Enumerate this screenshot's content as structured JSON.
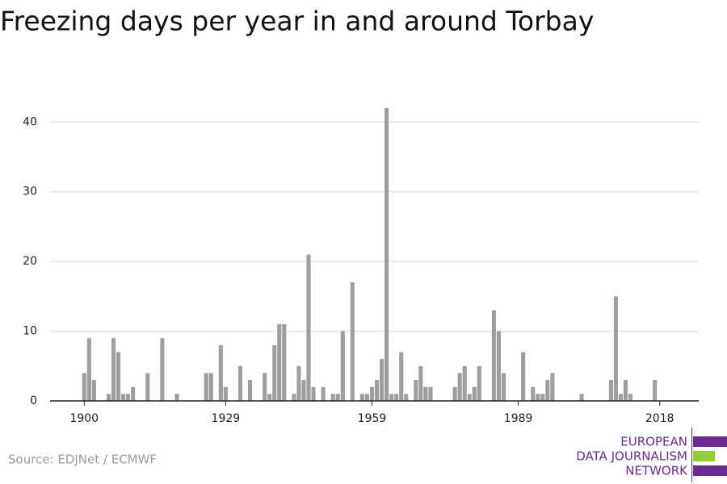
{
  "chart_data": {
    "type": "bar",
    "title": "Freezing days per year in and around Torbay",
    "source": "Source: EDJNet / ECMWF",
    "logo": [
      "EUROPEAN",
      "DATA JOURNALISM",
      "NETWORK"
    ],
    "color": "#9e9e9e",
    "x": [
      1900,
      1901,
      1902,
      1903,
      1904,
      1905,
      1906,
      1907,
      1908,
      1909,
      1910,
      1911,
      1912,
      1913,
      1914,
      1915,
      1916,
      1917,
      1918,
      1919,
      1920,
      1921,
      1922,
      1923,
      1924,
      1925,
      1926,
      1927,
      1928,
      1929,
      1930,
      1931,
      1932,
      1933,
      1934,
      1935,
      1936,
      1937,
      1938,
      1939,
      1940,
      1941,
      1942,
      1943,
      1944,
      1945,
      1946,
      1947,
      1948,
      1949,
      1950,
      1951,
      1952,
      1953,
      1954,
      1955,
      1956,
      1957,
      1958,
      1959,
      1960,
      1961,
      1962,
      1963,
      1964,
      1965,
      1966,
      1967,
      1968,
      1969,
      1970,
      1971,
      1972,
      1973,
      1974,
      1975,
      1976,
      1977,
      1978,
      1979,
      1980,
      1981,
      1982,
      1983,
      1984,
      1985,
      1986,
      1987,
      1988,
      1989,
      1990,
      1991,
      1992,
      1993,
      1994,
      1995,
      1996,
      1997,
      1998,
      1999,
      2000,
      2001,
      2002,
      2003,
      2004,
      2005,
      2006,
      2007,
      2008,
      2009,
      2010,
      2011,
      2012,
      2013,
      2014,
      2015,
      2016,
      2017,
      2018
    ],
    "values": [
      4,
      9,
      3,
      0,
      0,
      1,
      9,
      7,
      1,
      1,
      2,
      0,
      0,
      4,
      0,
      0,
      9,
      0,
      0,
      1,
      0,
      0,
      0,
      0,
      0,
      4,
      4,
      0,
      8,
      2,
      0,
      0,
      5,
      0,
      3,
      0,
      0,
      4,
      1,
      8,
      11,
      11,
      0,
      1,
      5,
      3,
      21,
      2,
      0,
      2,
      0,
      1,
      1,
      10,
      0,
      17,
      0,
      1,
      1,
      2,
      3,
      6,
      42,
      1,
      1,
      7,
      1,
      0,
      3,
      5,
      2,
      2,
      0,
      0,
      0,
      0,
      2,
      4,
      5,
      1,
      2,
      5,
      0,
      0,
      13,
      10,
      4,
      0,
      0,
      0,
      7,
      0,
      2,
      1,
      1,
      3,
      4,
      0,
      0,
      0,
      0,
      0,
      1,
      0,
      0,
      0,
      0,
      0,
      3,
      15,
      1,
      3,
      1,
      0,
      0,
      0,
      0,
      3,
      0
    ],
    "xlim": [
      1893,
      2026
    ],
    "xticks": [
      1900,
      1929,
      1959,
      1989,
      2018
    ],
    "ylim": [
      0,
      42
    ],
    "yticks": [
      0,
      10,
      20,
      30,
      40
    ],
    "grid": true
  }
}
